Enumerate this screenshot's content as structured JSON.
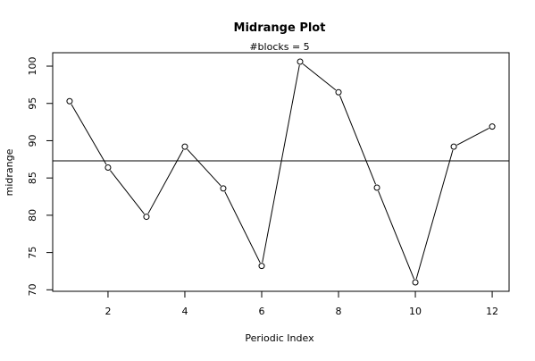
{
  "chart_data": {
    "type": "line",
    "title": "Midrange Plot",
    "subtitle": "#blocks =  5",
    "xlabel": "Periodic Index",
    "ylabel": "midrange",
    "xlim": [
      0.56,
      12.44
    ],
    "ylim": [
      69.8,
      101.8
    ],
    "x_ticks": [
      2,
      4,
      6,
      8,
      10,
      12
    ],
    "y_ticks": [
      70,
      75,
      80,
      85,
      90,
      95,
      100
    ],
    "grid": false,
    "legend": "none",
    "reference_line": 87.3,
    "series": [
      {
        "x": [
          1,
          2,
          3,
          4,
          5,
          6,
          7,
          8,
          9,
          10,
          11,
          12
        ],
        "values": [
          95.3,
          86.4,
          79.8,
          89.2,
          83.6,
          73.2,
          100.6,
          96.5,
          83.7,
          71.0,
          89.2,
          91.9
        ]
      }
    ],
    "colors": {
      "line": "#000000",
      "reference_line": "#000000",
      "point_fill": "#ffffff"
    }
  }
}
